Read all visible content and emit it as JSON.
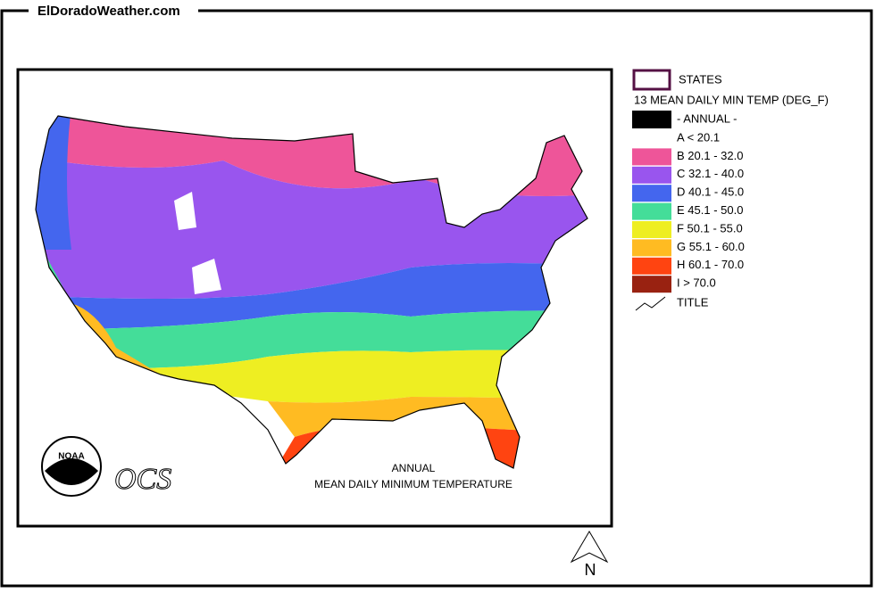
{
  "header": {
    "site": "ElDoradoWeather.com"
  },
  "map": {
    "title_lines": [
      "ANNUAL",
      "MEAN DAILY MINIMUM TEMPERATURE"
    ],
    "logo": "NOAA",
    "agency": "OCS",
    "north": "N"
  },
  "legend": {
    "states": "STATES",
    "variable": "13 MEAN DAILY MIN TEMP (DEG_F)",
    "period": "- ANNUAL -",
    "classes": [
      {
        "label": "A < 20.1",
        "color": "#ffffff"
      },
      {
        "label": "B 20.1 - 32.0",
        "color": "#ee5599"
      },
      {
        "label": "C 32.1 - 40.0",
        "color": "#9955ee"
      },
      {
        "label": "D 40.1 - 45.0",
        "color": "#4466ee"
      },
      {
        "label": "E 45.1 - 50.0",
        "color": "#44dd99"
      },
      {
        "label": "F 50.1 - 55.0",
        "color": "#eeee22"
      },
      {
        "label": "G 55.1 - 60.0",
        "color": "#ffbb22"
      },
      {
        "label": "H 60.1 - 70.0",
        "color": "#ff4411"
      },
      {
        "label": "I > 70.0",
        "color": "#992211"
      }
    ],
    "title": "TITLE"
  }
}
